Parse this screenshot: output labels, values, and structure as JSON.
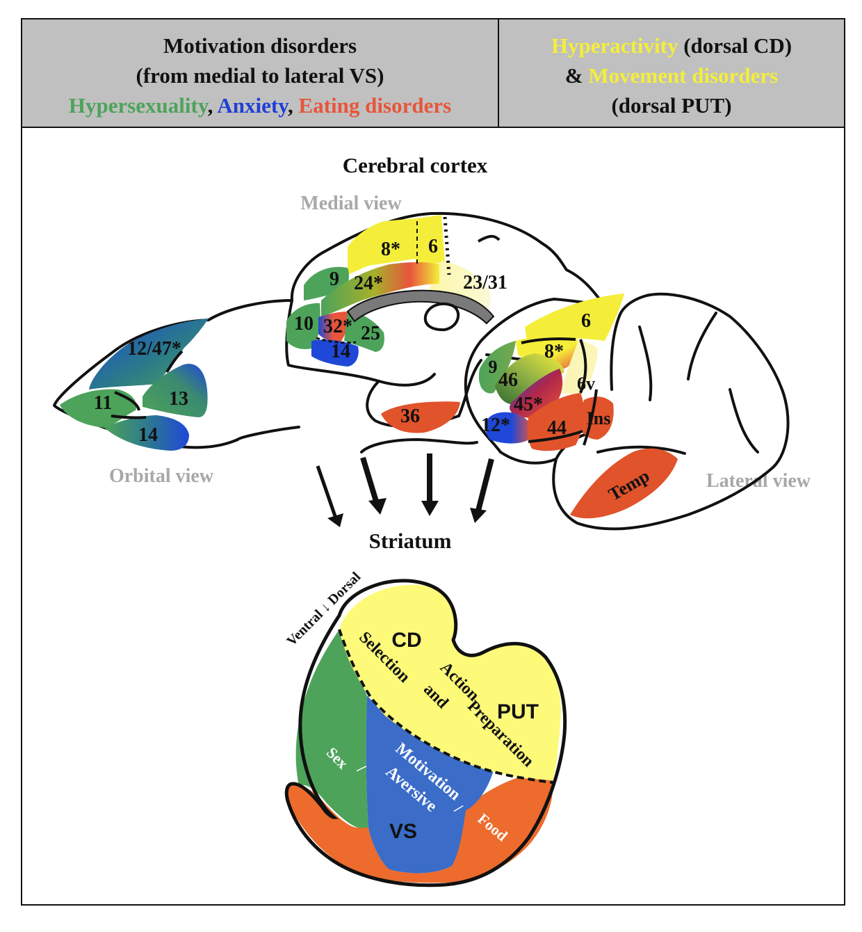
{
  "header": {
    "left": {
      "line1": "Motivation disorders",
      "line2": "(from medial to lateral VS)",
      "hypersexuality": "Hypersexuality",
      "sep1": ", ",
      "anxiety": "Anxiety",
      "sep2": ", ",
      "eating": "Eating disorders"
    },
    "right": {
      "hyperactivity": "Hyperactivity",
      "dorsal_cd": " (dorsal CD)",
      "amp": "& ",
      "movement": "Movement disorders",
      "dorsal_put": "(dorsal PUT)"
    }
  },
  "cortex": {
    "title": "Cerebral cortex",
    "medial_view": "Medial view",
    "orbital_view": "Orbital view",
    "lateral_view": "Lateral view",
    "medial_areas": {
      "a8": "8*",
      "a6": "6",
      "a9": "9",
      "a24": "24*",
      "a2331": "23/31",
      "a10": "10",
      "a32": "32*",
      "a25": "25",
      "a14": "14",
      "a36": "36"
    },
    "orbital_areas": {
      "a1247": "12/47*",
      "a11": "11",
      "a13": "13",
      "a14": "14"
    },
    "lateral_areas": {
      "a6": "6",
      "a8": "8*",
      "a9": "9",
      "a46": "46",
      "a6v": "6v",
      "a45": "45*",
      "a12": "12*",
      "a44": "44",
      "ins": "Ins",
      "temp": "Temp"
    }
  },
  "striatum": {
    "title": "Striatum",
    "axis": "Ventral ↓ Dorsal",
    "cd": "CD",
    "put": "PUT",
    "vs": "VS",
    "selection": "Selection",
    "action": "Action",
    "and": "and",
    "preparation": "Preparation",
    "sex": "Sex",
    "slash1": "/",
    "motivation": "Motivation",
    "aversive": "Aversive",
    "slash2": "/",
    "food": "Food"
  },
  "colors": {
    "header_bg": "#c0c0c0",
    "green": "#4da35a",
    "blue": "#1f3fd6",
    "red": "#e8553a",
    "yellow": "#f4ee3a",
    "striatum_yellow": "#fdfa7a",
    "striatum_blue": "#3a6cc8",
    "striatum_orange": "#ec6b2d",
    "gray_label": "#a8a8a8"
  }
}
